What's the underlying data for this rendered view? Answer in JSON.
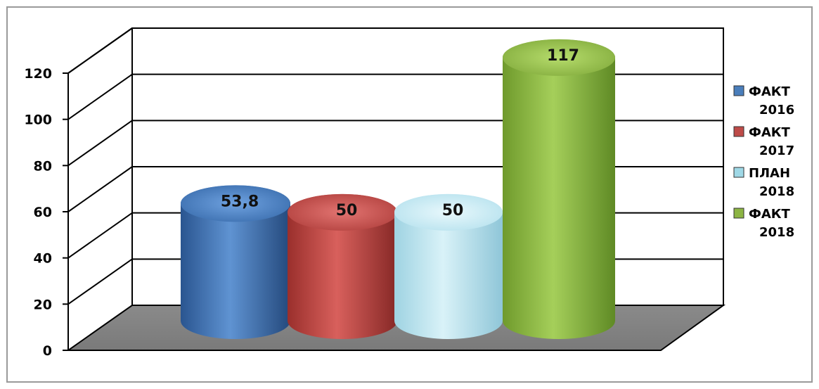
{
  "chart_data": {
    "type": "bar",
    "title": "",
    "xlabel": "",
    "ylabel": "",
    "ylim": [
      0,
      120
    ],
    "yticks": [
      0,
      20,
      40,
      60,
      80,
      100,
      120
    ],
    "ytick_labels": [
      "0",
      "20",
      "40",
      "60",
      "80",
      "100",
      "120"
    ],
    "grid": true,
    "legend_position": "right",
    "categories": [
      "ФАКТ 2016",
      "ФАКТ 2017",
      "ПЛАН 2018",
      "ФАКТ 2018"
    ],
    "values": [
      53.8,
      50,
      50,
      117
    ],
    "data_labels": [
      "53,8",
      "50",
      "50",
      "117"
    ],
    "legend": [
      {
        "line1": "ФАКТ",
        "line2": "2016",
        "color": "#4a7ebb"
      },
      {
        "line1": "ФАКТ",
        "line2": "2017",
        "color": "#be4b48"
      },
      {
        "line1": "ПЛАН",
        "line2": "2018",
        "color": "#9fd8e6"
      },
      {
        "line1": "ФАКТ",
        "line2": "2018",
        "color": "#8cb443"
      }
    ],
    "colors": [
      "#4a7ebb",
      "#be4b48",
      "#9fd8e6",
      "#8cb443"
    ],
    "style": "3d-cylinder"
  }
}
